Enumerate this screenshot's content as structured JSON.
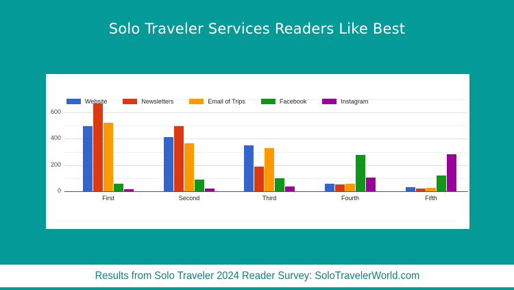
{
  "header": {
    "title": "Solo Traveler Services Readers Like Best"
  },
  "footer": {
    "text": "Results from Solo Traveler 2024 Reader Survey: SoloTravelerWorld.com"
  },
  "colors": {
    "background": "#049a98",
    "footer_text": "#137d7f",
    "Website": "#3366cc",
    "Newsletters": "#dc3912",
    "Email of Trips": "#ff9900",
    "Facebook": "#109618",
    "Instagram": "#990099"
  },
  "chart_data": {
    "type": "bar",
    "title": "",
    "xlabel": "",
    "ylabel": "",
    "categories": [
      "First",
      "Second",
      "Third",
      "Fourth",
      "Fifth"
    ],
    "series": [
      {
        "name": "Website",
        "color": "#3366cc",
        "values": [
          494,
          415,
          352,
          56,
          31
        ]
      },
      {
        "name": "Newsletters",
        "color": "#dc3912",
        "values": [
          668,
          494,
          188,
          52,
          23
        ]
      },
      {
        "name": "Email of Trips",
        "color": "#ff9900",
        "values": [
          520,
          365,
          330,
          60,
          28
        ]
      },
      {
        "name": "Facebook",
        "color": "#109618",
        "values": [
          56,
          87,
          98,
          279,
          122
        ]
      },
      {
        "name": "Instagram",
        "color": "#990099",
        "values": [
          14,
          19,
          37,
          103,
          281
        ]
      }
    ],
    "yticks": [
      0,
      200,
      400,
      600
    ],
    "ylim": [
      0,
      700
    ],
    "grid": true,
    "legend_position": "top"
  }
}
